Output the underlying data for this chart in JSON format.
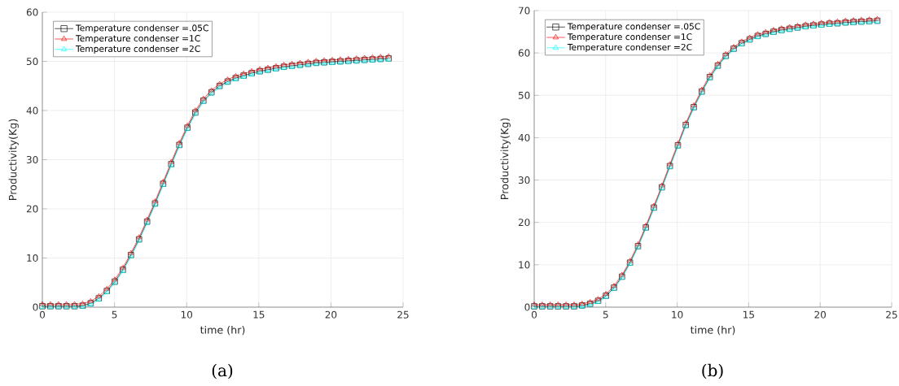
{
  "chart_data": [
    {
      "type": "line",
      "xlabel": "time (hr)",
      "ylabel": "Productivity(Kg)",
      "annotations": [
        "(a)"
      ],
      "xlim": [
        0,
        25
      ],
      "ylim": [
        0,
        60
      ],
      "xticks": [
        0,
        5,
        10,
        15,
        20,
        25
      ],
      "yticks": [
        0,
        10,
        20,
        30,
        40,
        50,
        60
      ],
      "grid": true,
      "legend": "top left",
      "line_style": "solid",
      "x": [
        0,
        0.56,
        1.12,
        1.67,
        2.23,
        2.79,
        3.35,
        3.91,
        4.47,
        5.02,
        5.58,
        6.14,
        6.7,
        7.26,
        7.81,
        8.37,
        8.93,
        9.49,
        10.05,
        10.6,
        11.16,
        11.72,
        12.28,
        12.84,
        13.4,
        13.95,
        14.51,
        15.07,
        15.63,
        16.19,
        16.74,
        17.3,
        17.86,
        18.42,
        18.98,
        19.53,
        20.09,
        20.65,
        21.21,
        21.77,
        22.33,
        22.88,
        23.44,
        24
      ],
      "series": [
        {
          "name": "Temperature condenser =.05C",
          "color": "#000000",
          "marker": "square",
          "values": [
            0.2,
            0.2,
            0.2,
            0.2,
            0.2,
            0.3,
            0.8,
            1.8,
            3.3,
            5.2,
            7.6,
            10.6,
            13.8,
            17.4,
            21.1,
            25.1,
            29.1,
            33.0,
            36.5,
            39.6,
            42.0,
            43.7,
            45.0,
            45.9,
            46.6,
            47.1,
            47.6,
            48.0,
            48.3,
            48.6,
            48.9,
            49.1,
            49.3,
            49.5,
            49.7,
            49.8,
            49.9,
            50.0,
            50.1,
            50.2,
            50.3,
            50.4,
            50.5,
            50.6
          ]
        },
        {
          "name": "Temperature condenser =1C",
          "color": "#ff0000",
          "marker": "triangle",
          "values": [
            0.6,
            0.6,
            0.6,
            0.6,
            0.6,
            0.7,
            1.2,
            2.2,
            3.7,
            5.6,
            8.0,
            11.0,
            14.2,
            17.8,
            21.5,
            25.5,
            29.5,
            33.4,
            36.9,
            40.0,
            42.4,
            44.1,
            45.4,
            46.3,
            47.0,
            47.5,
            48.0,
            48.4,
            48.7,
            49.0,
            49.3,
            49.5,
            49.7,
            49.9,
            50.1,
            50.2,
            50.3,
            50.4,
            50.5,
            50.6,
            50.7,
            50.8,
            50.9,
            51.0
          ]
        },
        {
          "name": "Temperature condenser =2C",
          "color": "#00ffff",
          "marker": "triangle-left",
          "values": [
            0.0,
            0.0,
            0.0,
            0.0,
            0.0,
            0.0,
            0.5,
            1.5,
            3.0,
            4.9,
            7.3,
            10.3,
            13.5,
            17.1,
            20.8,
            24.8,
            28.8,
            32.7,
            36.2,
            39.3,
            41.7,
            43.4,
            44.7,
            45.6,
            46.3,
            46.8,
            47.3,
            47.7,
            48.0,
            48.3,
            48.6,
            48.8,
            49.0,
            49.2,
            49.4,
            49.5,
            49.6,
            49.7,
            49.8,
            49.9,
            50.0,
            50.1,
            50.2,
            50.3
          ]
        }
      ]
    },
    {
      "type": "line",
      "xlabel": "time (hr)",
      "ylabel": "Productivity(Kg)",
      "annotations": [
        "(b)"
      ],
      "xlim": [
        0,
        25
      ],
      "ylim": [
        0,
        70
      ],
      "xticks": [
        0,
        5,
        10,
        15,
        20,
        25
      ],
      "yticks": [
        0,
        10,
        20,
        30,
        40,
        50,
        60,
        70
      ],
      "grid": true,
      "legend": "top left",
      "line_style": "solid",
      "x": [
        0,
        0.56,
        1.12,
        1.67,
        2.23,
        2.79,
        3.35,
        3.91,
        4.47,
        5.02,
        5.58,
        6.14,
        6.7,
        7.26,
        7.81,
        8.37,
        8.93,
        9.49,
        10.05,
        10.6,
        11.16,
        11.72,
        12.28,
        12.84,
        13.4,
        13.95,
        14.51,
        15.07,
        15.63,
        16.19,
        16.74,
        17.3,
        17.86,
        18.42,
        18.98,
        19.53,
        20.09,
        20.65,
        21.21,
        21.77,
        22.33,
        22.88,
        23.44,
        24
      ],
      "series": [
        {
          "name": "Temperature condenser =.05C",
          "color": "#000000",
          "marker": "square",
          "values": [
            0.2,
            0.2,
            0.2,
            0.2,
            0.2,
            0.2,
            0.4,
            0.8,
            1.5,
            2.7,
            4.6,
            7.2,
            10.5,
            14.4,
            18.8,
            23.5,
            28.3,
            33.3,
            38.2,
            43.0,
            47.2,
            50.9,
            54.3,
            57.0,
            59.3,
            61.0,
            62.3,
            63.2,
            64.0,
            64.5,
            65.0,
            65.4,
            65.7,
            66.0,
            66.3,
            66.5,
            66.7,
            66.9,
            67.0,
            67.2,
            67.3,
            67.4,
            67.5,
            67.6
          ]
        },
        {
          "name": "Temperature condenser =1C",
          "color": "#ff0000",
          "marker": "triangle",
          "values": [
            0.6,
            0.6,
            0.6,
            0.6,
            0.6,
            0.6,
            0.8,
            1.2,
            1.9,
            3.1,
            5.0,
            7.6,
            10.9,
            14.8,
            19.2,
            23.9,
            28.7,
            33.7,
            38.6,
            43.4,
            47.6,
            51.3,
            54.7,
            57.4,
            59.7,
            61.4,
            62.7,
            63.6,
            64.4,
            64.9,
            65.4,
            65.8,
            66.1,
            66.4,
            66.7,
            66.9,
            67.1,
            67.3,
            67.4,
            67.6,
            67.7,
            67.8,
            67.9,
            68.0
          ]
        },
        {
          "name": "Temperature condenser =2C",
          "color": "#00ffff",
          "marker": "triangle-left",
          "values": [
            0.0,
            0.0,
            0.0,
            0.0,
            0.0,
            0.0,
            0.1,
            0.5,
            1.2,
            2.4,
            4.3,
            6.9,
            10.2,
            14.1,
            18.5,
            23.2,
            28.0,
            33.0,
            37.9,
            42.7,
            46.9,
            50.6,
            54.0,
            56.7,
            59.0,
            60.7,
            62.0,
            62.9,
            63.7,
            64.2,
            64.7,
            65.1,
            65.4,
            65.7,
            66.0,
            66.2,
            66.4,
            66.6,
            66.7,
            66.9,
            67.0,
            67.1,
            67.2,
            67.3
          ]
        }
      ]
    }
  ]
}
